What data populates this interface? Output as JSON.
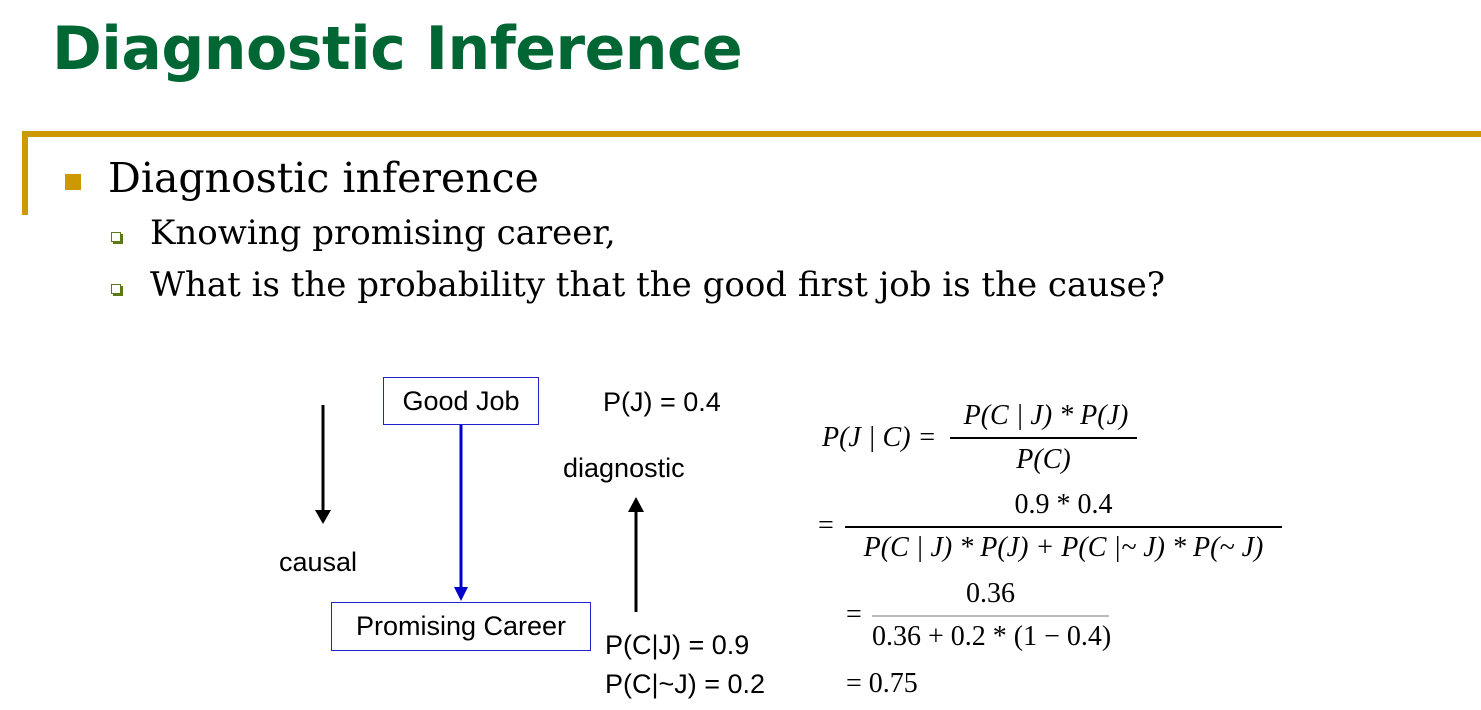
{
  "slide": {
    "title": "Diagnostic Inference",
    "bullet": "Diagnostic inference",
    "sub_bullets": [
      "Knowing promising career,",
      "What is the probability that the good first job is the cause?"
    ]
  },
  "diagram": {
    "node_top": "Good Job",
    "node_bottom": "Promising Career",
    "label_causal": "causal",
    "label_diagnostic": "diagnostic",
    "p_j": "P(J)  = 0.4",
    "p_c_given_j": "P(C|J)  = 0.9",
    "p_c_given_notj": "P(C|~J)  = 0.2"
  },
  "equation": {
    "lhs": "P(J | C) =",
    "num1": "P(C | J) * P(J)",
    "den1": "P(C)",
    "eq": "=",
    "num2": "0.9 * 0.4",
    "den2": "P(C | J) * P(J) + P(C |~ J) * P(~ J)",
    "num3": "0.36",
    "den3": "0.36 + 0.2 * (1 − 0.4)",
    "result": "= 0.75"
  },
  "colors": {
    "title": "#006633",
    "accent_rule": "#cc9900",
    "node_border": "#2222cc",
    "arrow_blue": "#0000cc",
    "sub_bullet": "#5a7a16"
  }
}
